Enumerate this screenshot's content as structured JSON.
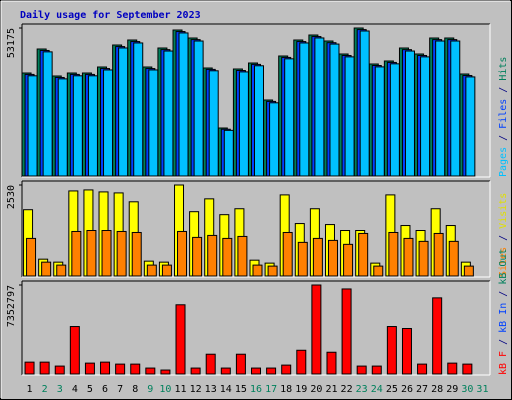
{
  "title": "Daily usage for September 2023",
  "chart_data": [
    {
      "type": "bar",
      "ylim": [
        0,
        53175
      ],
      "yticks": [
        53175
      ],
      "side_label": [
        {
          "text": "Pages",
          "color": "#00c0ff"
        },
        {
          "text": " / ",
          "color": "#000080"
        },
        {
          "text": "Files",
          "color": "#0040ff"
        },
        {
          "text": " / ",
          "color": "#000080"
        },
        {
          "text": "Hits",
          "color": "#00805c"
        }
      ],
      "series": [
        {
          "name": "Hits",
          "color": "#00805c",
          "values": [
            37007,
            45630,
            35930,
            37007,
            37007,
            39163,
            47067,
            48864,
            39163,
            45990,
            52456,
            49582,
            38803,
            17246,
            38444,
            40600,
            27306,
            43115,
            48864,
            50660,
            48504,
            43834,
            53175,
            40241,
            41318,
            45990,
            43834,
            49582,
            49582,
            36647,
            null
          ]
        },
        {
          "name": "Files",
          "color": "#0040ff",
          "values": [
            36500,
            45100,
            35400,
            36500,
            36500,
            38600,
            46500,
            48300,
            38600,
            45400,
            51900,
            49000,
            38300,
            16800,
            37900,
            40100,
            26800,
            42600,
            48300,
            50100,
            47900,
            43300,
            52600,
            39700,
            40800,
            45400,
            43300,
            49000,
            49000,
            36100,
            null
          ]
        },
        {
          "name": "Pages",
          "color": "#00c0ff",
          "values": [
            36000,
            44600,
            34900,
            36000,
            36000,
            38100,
            46000,
            47800,
            38100,
            44900,
            51400,
            48500,
            37800,
            16400,
            37400,
            39600,
            26300,
            42100,
            47800,
            49600,
            47400,
            42800,
            52100,
            39200,
            40300,
            44900,
            42800,
            48500,
            48500,
            35600,
            null
          ]
        }
      ]
    },
    {
      "type": "bar",
      "ylim": [
        0,
        2530
      ],
      "yticks": [
        2530
      ],
      "side_label": [
        {
          "text": "Sites",
          "color": "#ff8000"
        },
        {
          "text": " / ",
          "color": "#000080"
        },
        {
          "text": "Visits",
          "color": "#e0e000"
        }
      ],
      "series": [
        {
          "name": "Visits",
          "color": "#ffff00",
          "values": [
            1843,
            468,
            385,
            2365,
            2393,
            2338,
            2310,
            2063,
            413,
            385,
            2530,
            1788,
            2145,
            1705,
            1870,
            440,
            358,
            2255,
            1458,
            1870,
            1430,
            1265,
            1265,
            358,
            2255,
            1403,
            1265,
            1870,
            1403,
            385,
            null
          ]
        },
        {
          "name": "Sites",
          "color": "#ff8000",
          "values": [
            1045,
            385,
            303,
            1238,
            1265,
            1265,
            1238,
            1210,
            303,
            303,
            1238,
            1073,
            1128,
            1045,
            1100,
            303,
            275,
            1210,
            935,
            1045,
            990,
            880,
            1183,
            275,
            1210,
            1045,
            963,
            1183,
            963,
            275,
            null
          ]
        }
      ]
    },
    {
      "type": "bar",
      "ylim": [
        0,
        7352797
      ],
      "yticks": [
        7352797
      ],
      "side_label": [
        {
          "text": "kB F",
          "color": "#ff0000"
        },
        {
          "text": " / ",
          "color": "#000080"
        },
        {
          "text": "kB In",
          "color": "#0040ff"
        },
        {
          "text": " / ",
          "color": "#000080"
        },
        {
          "text": "kB Out",
          "color": "#00805c"
        }
      ],
      "categories": [
        "1",
        "2",
        "3",
        "4",
        "5",
        "6",
        "7",
        "8",
        "9",
        "10",
        "11",
        "12",
        "13",
        "14",
        "15",
        "16",
        "17",
        "18",
        "19",
        "20",
        "21",
        "22",
        "23",
        "24",
        "25",
        "26",
        "27",
        "28",
        "29",
        "30",
        "31"
      ],
      "category_colors": [
        "#000000",
        "#00805c",
        "#00805c",
        "#000000",
        "#000000",
        "#000000",
        "#000000",
        "#000000",
        "#00805c",
        "#00805c",
        "#000000",
        "#000000",
        "#000000",
        "#000000",
        "#000000",
        "#00805c",
        "#00805c",
        "#000000",
        "#000000",
        "#000000",
        "#000000",
        "#000000",
        "#00805c",
        "#00805c",
        "#000000",
        "#000000",
        "#000000",
        "#000000",
        "#000000",
        "#00805c",
        "#00805c"
      ],
      "series": [
        {
          "name": "kB F",
          "color": "#ff0000",
          "values": [
            980376,
            980376,
            653584,
            3921505,
            898678,
            980376,
            816978,
            816978,
            490186,
            326791,
            5718842,
            490186,
            1633955,
            490186,
            1633955,
            490186,
            490186,
            735280,
            1960746,
            7352797,
            1797350,
            7026006,
            653584,
            653584,
            3921505,
            3758096,
            816978,
            6290726,
            898678,
            816978,
            null
          ]
        }
      ]
    }
  ]
}
